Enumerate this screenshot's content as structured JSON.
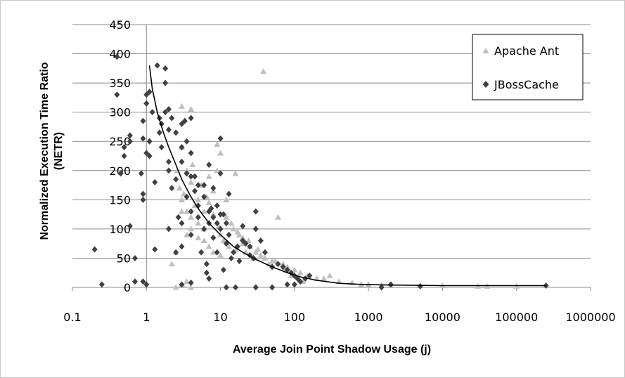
{
  "chart_data": {
    "type": "scatter",
    "xlabel": "Average Join Point Shadow Usage (j)",
    "ylabel_lines": [
      "Normalized Execution Time Ratio",
      "(NETR)"
    ],
    "x_scale": "log",
    "xlim": [
      0.1,
      1000000
    ],
    "ylim": [
      0,
      450
    ],
    "x_ticks": [
      "0.1",
      "1",
      "10",
      "100",
      "1000",
      "10000",
      "100000",
      "1000000"
    ],
    "y_ticks": [
      "0",
      "50",
      "100",
      "150",
      "200",
      "250",
      "300",
      "350",
      "400",
      "450"
    ],
    "grid": "horizontal",
    "legend_position": "top-right",
    "series": [
      {
        "name": "Apache Ant",
        "marker": "triangle",
        "color": "#bfbfbf",
        "points": [
          [
            2.5,
            0
          ],
          [
            3,
            5
          ],
          [
            3.5,
            10
          ],
          [
            4,
            0
          ],
          [
            2.2,
            40
          ],
          [
            2.5,
            60
          ],
          [
            3,
            310
          ],
          [
            4,
            305
          ],
          [
            3,
            240
          ],
          [
            3.5,
            200
          ],
          [
            4,
            180
          ],
          [
            5,
            150
          ],
          [
            3,
            130
          ],
          [
            4,
            120
          ],
          [
            5,
            110
          ],
          [
            6,
            100
          ],
          [
            3.5,
            90
          ],
          [
            5,
            85
          ],
          [
            6,
            80
          ],
          [
            7,
            70
          ],
          [
            8,
            60
          ],
          [
            10,
            55
          ],
          [
            2.8,
            170
          ],
          [
            3.2,
            160
          ],
          [
            4.5,
            140
          ],
          [
            7,
            190
          ],
          [
            8,
            165
          ],
          [
            9,
            200
          ],
          [
            9,
            245
          ],
          [
            10,
            230
          ],
          [
            12,
            150
          ],
          [
            12,
            120
          ],
          [
            14,
            110
          ],
          [
            15,
            100
          ],
          [
            18,
            90
          ],
          [
            20,
            85
          ],
          [
            16,
            195
          ],
          [
            20,
            75
          ],
          [
            25,
            70
          ],
          [
            30,
            60
          ],
          [
            35,
            55
          ],
          [
            40,
            50
          ],
          [
            50,
            45
          ],
          [
            38,
            370
          ],
          [
            60,
            120
          ],
          [
            70,
            40
          ],
          [
            80,
            35
          ],
          [
            100,
            30
          ],
          [
            120,
            25
          ],
          [
            150,
            20
          ],
          [
            200,
            15
          ],
          [
            250,
            15
          ],
          [
            300,
            20
          ],
          [
            400,
            10
          ],
          [
            600,
            8
          ],
          [
            800,
            5
          ],
          [
            1000,
            5
          ],
          [
            1500,
            4
          ],
          [
            2000,
            3
          ],
          [
            5000,
            3
          ],
          [
            10000,
            3
          ],
          [
            30000,
            2
          ],
          [
            40000,
            2
          ],
          [
            100000,
            2
          ],
          [
            3,
            150
          ],
          [
            3.5,
            130
          ],
          [
            4,
            100
          ],
          [
            6,
            130
          ],
          [
            7,
            145
          ],
          [
            8,
            125
          ],
          [
            10,
            90
          ],
          [
            11,
            80
          ],
          [
            13,
            70
          ],
          [
            16,
            65
          ],
          [
            22,
            60
          ],
          [
            28,
            50
          ],
          [
            45,
            40
          ],
          [
            90,
            20
          ],
          [
            130,
            10
          ],
          [
            2.6,
            200
          ],
          [
            4.2,
            210
          ],
          [
            5.5,
            175
          ],
          [
            6.5,
            155
          ],
          [
            9.5,
            105
          ],
          [
            17,
            95
          ],
          [
            24,
            80
          ],
          [
            32,
            65
          ],
          [
            55,
            45
          ],
          [
            75,
            30
          ]
        ]
      },
      {
        "name": "JBossCache",
        "marker": "diamond",
        "color": "#404040",
        "points": [
          [
            0.2,
            65
          ],
          [
            0.25,
            5
          ],
          [
            0.4,
            395
          ],
          [
            0.4,
            330
          ],
          [
            0.45,
            195
          ],
          [
            0.5,
            225
          ],
          [
            0.5,
            240
          ],
          [
            0.6,
            260
          ],
          [
            0.6,
            250
          ],
          [
            0.6,
            105
          ],
          [
            0.7,
            50
          ],
          [
            0.7,
            10
          ],
          [
            0.85,
            195
          ],
          [
            0.9,
            285
          ],
          [
            0.9,
            255
          ],
          [
            0.9,
            160
          ],
          [
            0.9,
            150
          ],
          [
            0.9,
            10
          ],
          [
            1,
            315
          ],
          [
            1,
            330
          ],
          [
            1,
            230
          ],
          [
            1,
            5
          ],
          [
            1.1,
            335
          ],
          [
            1.1,
            250
          ],
          [
            1.1,
            225
          ],
          [
            1.2,
            300
          ],
          [
            1.3,
            180
          ],
          [
            1.3,
            65
          ],
          [
            1.4,
            380
          ],
          [
            1.5,
            290
          ],
          [
            1.5,
            265
          ],
          [
            1.6,
            280
          ],
          [
            1.6,
            240
          ],
          [
            1.8,
            375
          ],
          [
            1.8,
            350
          ],
          [
            1.8,
            300
          ],
          [
            2,
            305
          ],
          [
            2,
            270
          ],
          [
            2,
            215
          ],
          [
            2,
            200
          ],
          [
            2,
            100
          ],
          [
            2.2,
            290
          ],
          [
            2.2,
            170
          ],
          [
            2.5,
            265
          ],
          [
            2.5,
            185
          ],
          [
            2.5,
            60
          ],
          [
            2.7,
            120
          ],
          [
            3,
            280
          ],
          [
            3,
            240
          ],
          [
            3,
            215
          ],
          [
            3,
            110
          ],
          [
            3,
            70
          ],
          [
            3.3,
            285
          ],
          [
            3.5,
            250
          ],
          [
            3.5,
            195
          ],
          [
            3.5,
            155
          ],
          [
            4,
            290
          ],
          [
            4,
            230
          ],
          [
            4,
            190
          ],
          [
            4,
            130
          ],
          [
            4,
            90
          ],
          [
            4.5,
            190
          ],
          [
            4.5,
            165
          ],
          [
            5,
            175
          ],
          [
            5,
            140
          ],
          [
            5,
            120
          ],
          [
            5.5,
            60
          ],
          [
            6,
            175
          ],
          [
            6,
            155
          ],
          [
            6,
            100
          ],
          [
            6.5,
            40
          ],
          [
            6.5,
            25
          ],
          [
            7,
            210
          ],
          [
            7,
            130
          ],
          [
            7,
            110
          ],
          [
            7.5,
            135
          ],
          [
            8,
            170
          ],
          [
            8,
            120
          ],
          [
            8,
            85
          ],
          [
            9,
            140
          ],
          [
            9,
            110
          ],
          [
            9,
            60
          ],
          [
            10,
            255
          ],
          [
            10,
            195
          ],
          [
            10,
            125
          ],
          [
            10,
            100
          ],
          [
            11,
            125
          ],
          [
            11,
            30
          ],
          [
            12,
            110
          ],
          [
            12,
            75
          ],
          [
            13,
            160
          ],
          [
            13,
            90
          ],
          [
            14,
            50
          ],
          [
            15,
            60
          ],
          [
            17,
            70
          ],
          [
            18,
            45
          ],
          [
            20,
            105
          ],
          [
            20,
            80
          ],
          [
            22,
            75
          ],
          [
            25,
            70
          ],
          [
            25,
            55
          ],
          [
            28,
            50
          ],
          [
            30,
            130
          ],
          [
            30,
            100
          ],
          [
            35,
            80
          ],
          [
            40,
            60
          ],
          [
            50,
            35
          ],
          [
            60,
            40
          ],
          [
            70,
            35
          ],
          [
            80,
            30
          ],
          [
            90,
            25
          ],
          [
            100,
            20
          ],
          [
            110,
            15
          ],
          [
            120,
            10
          ],
          [
            140,
            15
          ],
          [
            160,
            20
          ],
          [
            80,
            5
          ],
          [
            100,
            5
          ],
          [
            12,
            0
          ],
          [
            16,
            0
          ],
          [
            30,
            0
          ],
          [
            50,
            0
          ],
          [
            3,
            5
          ],
          [
            4,
            8
          ],
          [
            7,
            15
          ],
          [
            1500,
            0
          ],
          [
            2000,
            5
          ],
          [
            5000,
            2
          ],
          [
            250000,
            3
          ]
        ]
      }
    ],
    "trendline": {
      "color": "#000000",
      "points": [
        [
          1.1,
          380
        ],
        [
          1.2,
          340
        ],
        [
          1.4,
          300
        ],
        [
          1.7,
          265
        ],
        [
          2,
          240
        ],
        [
          2.5,
          210
        ],
        [
          3,
          185
        ],
        [
          4,
          155
        ],
        [
          5,
          135
        ],
        [
          7,
          110
        ],
        [
          10,
          90
        ],
        [
          15,
          70
        ],
        [
          20,
          60
        ],
        [
          30,
          48
        ],
        [
          50,
          35
        ],
        [
          80,
          25
        ],
        [
          120,
          18
        ],
        [
          200,
          12
        ],
        [
          400,
          7
        ],
        [
          800,
          5
        ],
        [
          2000,
          4
        ],
        [
          10000,
          3
        ],
        [
          50000,
          3
        ],
        [
          250000,
          3
        ]
      ]
    }
  }
}
